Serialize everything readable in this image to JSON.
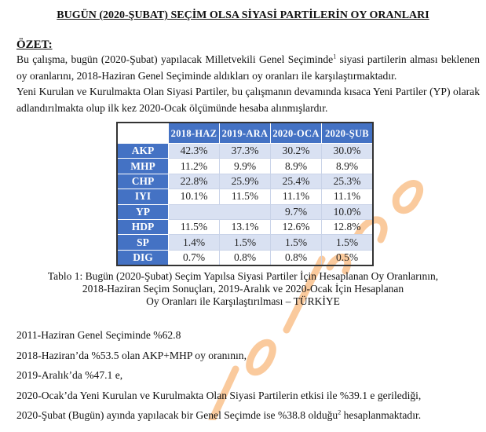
{
  "title": "BUGÜN (2020-ŞUBAT) SEÇİM OLSA SİYASİ PARTİLERİN OY ORANLARI",
  "summary_heading": "ÖZET:",
  "paragraph1_a": "Bu çalışma, bugün (2020-Şubat) yapılacak Milletvekili Genel Seçiminde",
  "paragraph1_sup": "1",
  "paragraph1_b": " siyasi partilerin alması beklenen oy oranlarını, 2018-Haziran Genel Seçiminde aldıkları oy oranları ile karşılaştırmaktadır.",
  "paragraph2": "Yeni Kurulan ve Kurulmakta Olan Siyasi Partiler, bu çalışmanın devamında kısaca Yeni Partiler (YP) olarak adlandırılmakta olup ilk kez 2020-Ocak ölçümünde hesaba alınmışlardır.",
  "table": {
    "columns": [
      "2018-HAZ",
      "2019-ARA",
      "2020-OCA",
      "2020-ŞUB"
    ],
    "rows": [
      {
        "party": "AKP",
        "values": [
          "42.3%",
          "37.3%",
          "30.2%",
          "30.0%"
        ]
      },
      {
        "party": "MHP",
        "values": [
          "11.2%",
          "9.9%",
          "8.9%",
          "8.9%"
        ]
      },
      {
        "party": "CHP",
        "values": [
          "22.8%",
          "25.9%",
          "25.4%",
          "25.3%"
        ]
      },
      {
        "party": "IYI",
        "values": [
          "10.1%",
          "11.5%",
          "11.1%",
          "11.1%"
        ]
      },
      {
        "party": "YP",
        "values": [
          "",
          "",
          "9.7%",
          "10.0%"
        ]
      },
      {
        "party": "HDP",
        "values": [
          "11.5%",
          "13.1%",
          "12.6%",
          "12.8%"
        ]
      },
      {
        "party": "SP",
        "values": [
          "1.4%",
          "1.5%",
          "1.5%",
          "1.5%"
        ]
      },
      {
        "party": "DIG",
        "values": [
          "0.7%",
          "0.8%",
          "0.8%",
          "0.5%"
        ]
      }
    ],
    "header_color": "#4472c4",
    "alt_row_color": "#d9e1f2"
  },
  "caption": [
    "Tablo 1: Bugün (2020-Şubat) Seçim Yapılsa Siyasi Partiler İçin Hesaplanan Oy Oranlarının,",
    "2018-Haziran Seçim Sonuçları, 2019-Aralık ve 2020-Ocak İçin Hesaplanan",
    "Oy Oranları ile Karşılaştırılması – TÜRKİYE"
  ],
  "lines": [
    "2011-Haziran Genel Seçiminde %62.8",
    "2018-Haziran’da %53.5 olan AKP+MHP oy oranının,",
    "2019-Aralık’da %47.1 e,",
    "2020-Ocak’da Yeni Kurulan ve Kurulmakta Olan Siyasi Partilerin etkisi ile %39.1 e gerilediği,"
  ],
  "last_line_a": "2020-Şubat (Bugün) ayında yapılacak bir Genel Seçimde ise %38.8 olduğu",
  "last_line_sup": "2",
  "last_line_b": " hesaplanmaktadır.",
  "watermark": "polimetre.com",
  "watermark_color": "#f58c28"
}
